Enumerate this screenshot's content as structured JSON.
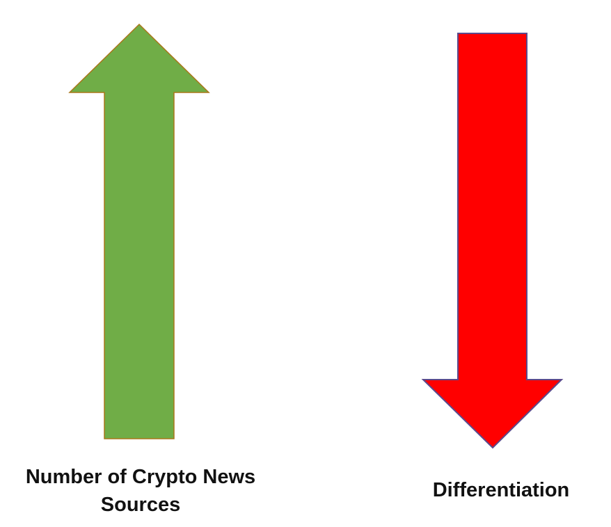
{
  "diagram": {
    "up_arrow": {
      "label_line1": "Number of Crypto News",
      "label_line2": "Sources",
      "direction": "up",
      "fill": "#70ad47",
      "stroke": "#a9771a"
    },
    "down_arrow": {
      "label": "Differentiation",
      "direction": "down",
      "fill": "#ff0000",
      "stroke": "#5b4a8c"
    }
  }
}
